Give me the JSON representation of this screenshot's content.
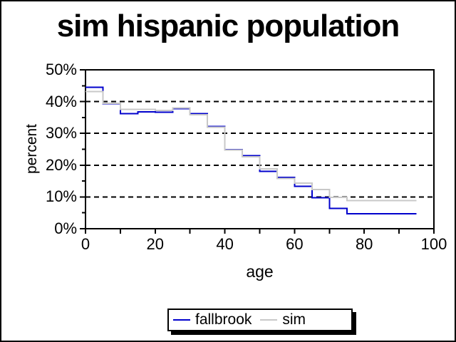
{
  "chart_data": {
    "type": "line",
    "subtype": "step",
    "title": "sim hispanic population",
    "xlabel": "age",
    "ylabel": "percent",
    "xlim": [
      0,
      100
    ],
    "ylim": [
      0,
      50
    ],
    "grid": "horizontal-dashed",
    "gridline_values": [
      10,
      20,
      30,
      40
    ],
    "x_ticks": [
      {
        "value": 0,
        "label": "0"
      },
      {
        "value": 10,
        "label": ""
      },
      {
        "value": 20,
        "label": "20"
      },
      {
        "value": 30,
        "label": ""
      },
      {
        "value": 40,
        "label": "40"
      },
      {
        "value": 50,
        "label": ""
      },
      {
        "value": 60,
        "label": "60"
      },
      {
        "value": 70,
        "label": ""
      },
      {
        "value": 80,
        "label": "80"
      },
      {
        "value": 90,
        "label": ""
      },
      {
        "value": 100,
        "label": "100"
      }
    ],
    "y_ticks": [
      {
        "value": 0,
        "label": "0%"
      },
      {
        "value": 10,
        "label": "10%"
      },
      {
        "value": 20,
        "label": "20%"
      },
      {
        "value": 30,
        "label": "30%"
      },
      {
        "value": 40,
        "label": "40%"
      },
      {
        "value": 50,
        "label": "50%"
      }
    ],
    "y_minor_ticks": [
      5,
      15,
      25,
      35,
      45
    ],
    "bin_edges": [
      0,
      5,
      10,
      15,
      20,
      25,
      30,
      35,
      40,
      45,
      50,
      55,
      60,
      65,
      70,
      75,
      95
    ],
    "series": [
      {
        "name": "fallbrook",
        "color": "#0000CC",
        "values": [
          44.5,
          39.4,
          36.2,
          36.8,
          36.7,
          37.8,
          36.2,
          32.2,
          24.9,
          23.0,
          18.0,
          16.1,
          13.3,
          9.8,
          6.4,
          4.7
        ]
      },
      {
        "name": "sim",
        "color": "#C8C8C8",
        "values": [
          43.2,
          39.5,
          37.6,
          37.6,
          37.2,
          38.0,
          35.9,
          32.0,
          24.8,
          22.7,
          18.8,
          15.8,
          14.3,
          12.3,
          9.9,
          8.9
        ]
      }
    ],
    "legend_position": "bottom"
  },
  "legend": {
    "items": [
      {
        "label": "fallbrook",
        "color": "#0000CC"
      },
      {
        "label": "sim",
        "color": "#C8C8C8"
      }
    ]
  }
}
